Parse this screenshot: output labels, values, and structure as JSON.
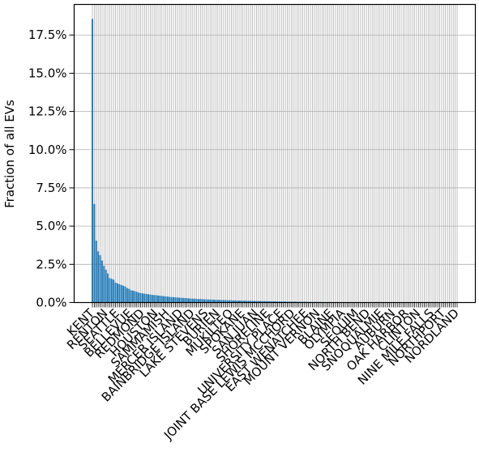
{
  "chart_data": {
    "type": "bar",
    "title": "",
    "xlabel": "",
    "ylabel": "Fraction of all EVs",
    "ylim": [
      0,
      0.195
    ],
    "yticks": [
      0,
      0.025,
      0.05,
      0.075,
      0.1,
      0.125,
      0.15,
      0.175
    ],
    "ytick_labels": [
      "0.0%",
      "2.5%",
      "5.0%",
      "7.5%",
      "10.0%",
      "12.5%",
      "15.0%",
      "17.5%"
    ],
    "grid": true,
    "bar_color": "#1f77b4",
    "category_count": 190,
    "visible_category_labels": [
      "KENT",
      "RENTON",
      "SEATTLE",
      "BELLEVUE",
      "REDMOND",
      "HOUSTON",
      "SAMMAMISH",
      "MERCER ISLAND",
      "BAINBRIDGE ISLAND",
      "LAKE STEVENS",
      "BURIEN",
      "MUKILTEO",
      "SPOKANE",
      "SAN JUAN",
      "SHORELINE",
      "UNIVERSITY PLACE",
      "JOINT BASE LEWIS MCCHORD",
      "EAST WENATCHEE",
      "MOUNT VERNON",
      "BLAINE",
      "OLYMPIA",
      "SEQUIM",
      "NORTH BEND",
      "SNOQUALMIE",
      "AUBURN",
      "OAK HARBOR",
      "CLINTON",
      "NINE MILE FALLS",
      "NORTHPORT",
      "NORDLAND"
    ],
    "values": [
      0.1855,
      0.0645,
      0.0405,
      0.0335,
      0.031,
      0.0275,
      0.024,
      0.0215,
      0.019,
      0.016,
      0.0155,
      0.015,
      0.013,
      0.0125,
      0.012,
      0.0115,
      0.011,
      0.0105,
      0.0095,
      0.009,
      0.008,
      0.0078,
      0.0075,
      0.007,
      0.0065,
      0.0062,
      0.006,
      0.0058,
      0.0056,
      0.0054,
      0.0052,
      0.005,
      0.0049,
      0.0048,
      0.0046,
      0.0045,
      0.0043,
      0.0042,
      0.004,
      0.0039,
      0.0037,
      0.0036,
      0.0035,
      0.0034,
      0.0033,
      0.0032,
      0.0031,
      0.003,
      0.0029,
      0.0028,
      0.0027,
      0.0026,
      0.0025,
      0.0025,
      0.0024,
      0.0023,
      0.0023,
      0.0022,
      0.0021,
      0.0021,
      0.002,
      0.002,
      0.0019,
      0.0019,
      0.0018,
      0.0018,
      0.0017,
      0.0017,
      0.0016,
      0.0016,
      0.0015,
      0.0015,
      0.0015,
      0.0014,
      0.0014,
      0.0013,
      0.0013,
      0.0013,
      0.0012,
      0.0012,
      0.0012,
      0.0011,
      0.0011,
      0.0011,
      0.001,
      0.001,
      0.001,
      0.001,
      0.0009,
      0.0009,
      0.0009,
      0.0009,
      0.0008,
      0.0008,
      0.0008,
      0.0008,
      0.0007,
      0.0007,
      0.0007,
      0.0007,
      0.0007,
      0.0006,
      0.0006,
      0.0006,
      0.0006,
      0.0006,
      0.0005,
      0.0005,
      0.0005,
      0.0005,
      0.0005,
      0.0005,
      0.0004,
      0.0004,
      0.0004,
      0.0004,
      0.0004,
      0.0004,
      0.0004,
      0.0003,
      0.0003,
      0.0003,
      0.0003,
      0.0003,
      0.0003,
      0.0003,
      0.0003,
      0.0003,
      0.0002,
      0.0002,
      0.0002,
      0.0002,
      0.0002,
      0.0002,
      0.0002,
      0.0002,
      0.0002,
      0.0002,
      0.0002,
      0.0002,
      0.0002,
      0.0001,
      0.0001,
      0.0001,
      0.0001,
      0.0001,
      0.0001,
      0.0001,
      0.0001,
      0.0001,
      0.0001,
      0.0001,
      0.0001,
      0.0001,
      0.0001,
      0.0001,
      0.0001,
      0.0001,
      0.0001,
      0.0001,
      0.0001,
      0.0001,
      0.0001,
      0.0001,
      0.0001,
      0.0001,
      0.0001,
      0.0001,
      0.0001,
      0.0001,
      0.0001,
      0.0001,
      0.0001,
      0.0001,
      0.0001,
      0.0001,
      0.0001,
      0.0001,
      0.0001,
      0.0001,
      0.0001,
      0.0001,
      0.0001,
      0.0001,
      0.0001,
      0.0001,
      0.0001,
      0.0001,
      0.0001,
      0.0001,
      0.0001,
      0.0001
    ]
  }
}
